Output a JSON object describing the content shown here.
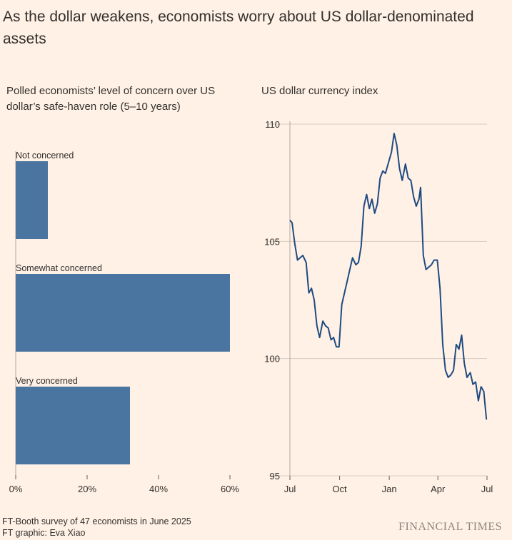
{
  "title": "As the dollar weakens, economists worry about US dollar-denominated assets",
  "footer": {
    "source": "FT-Booth survey of 47 economists in June 2025",
    "credit": "FT graphic: Eva Xiao",
    "logo": "FINANCIAL TIMES"
  },
  "colors": {
    "bar": "#4a75a0",
    "line": "#1f4b82",
    "grid": "#d7cbc2",
    "background": "#fff1e5"
  },
  "chart_data": [
    {
      "type": "bar",
      "orientation": "horizontal",
      "title": "Polled economists’ level of concern over US dollar’s safe-haven role (5–10 years)",
      "categories": [
        "Not concerned",
        "Somewhat concerned",
        "Very concerned"
      ],
      "values": [
        9,
        60,
        32
      ],
      "unit": "%",
      "xlim": [
        0,
        60
      ],
      "xticks": [
        "0%",
        "20%",
        "40%",
        "60%"
      ]
    },
    {
      "type": "line",
      "title": "US dollar currency index",
      "xlim": [
        "2024-07",
        "2025-07"
      ],
      "ylim": [
        95,
        110
      ],
      "xticks": [
        "Jul",
        "Oct",
        "Jan",
        "Apr",
        "Jul"
      ],
      "yticks": [
        "95",
        "100",
        "105",
        "110"
      ],
      "grid": true,
      "series": [
        {
          "x": [
            "2024-07-01",
            "2024-07-05",
            "2024-07-10",
            "2024-07-15",
            "2024-07-20",
            "2024-07-25",
            "2024-07-31",
            "2024-08-05",
            "2024-08-10",
            "2024-08-15",
            "2024-08-20",
            "2024-08-25",
            "2024-08-31",
            "2024-09-05",
            "2024-09-10",
            "2024-09-15",
            "2024-09-20",
            "2024-09-25",
            "2024-09-30",
            "2024-10-05",
            "2024-10-10",
            "2024-10-15",
            "2024-10-20",
            "2024-10-25",
            "2024-10-31",
            "2024-11-05",
            "2024-11-10",
            "2024-11-15",
            "2024-11-20",
            "2024-11-25",
            "2024-11-30",
            "2024-12-05",
            "2024-12-10",
            "2024-12-15",
            "2024-12-20",
            "2024-12-25",
            "2024-12-31",
            "2025-01-05",
            "2025-01-10",
            "2025-01-15",
            "2025-01-20",
            "2025-01-25",
            "2025-01-31",
            "2025-02-05",
            "2025-02-10",
            "2025-02-15",
            "2025-02-20",
            "2025-02-25",
            "2025-02-28",
            "2025-03-05",
            "2025-03-10",
            "2025-03-15",
            "2025-03-20",
            "2025-03-25",
            "2025-03-31",
            "2025-04-05",
            "2025-04-10",
            "2025-04-15",
            "2025-04-20",
            "2025-04-25",
            "2025-04-30",
            "2025-05-05",
            "2025-05-10",
            "2025-05-15",
            "2025-05-20",
            "2025-05-25",
            "2025-05-31",
            "2025-06-05",
            "2025-06-10",
            "2025-06-15",
            "2025-06-20",
            "2025-06-25",
            "2025-06-30"
          ],
          "values": [
            105.9,
            105.8,
            104.9,
            104.2,
            104.3,
            104.4,
            104.1,
            102.8,
            103.0,
            102.5,
            101.4,
            100.9,
            101.6,
            101.4,
            101.3,
            100.8,
            100.9,
            100.5,
            100.5,
            102.3,
            102.8,
            103.3,
            103.8,
            104.3,
            104.0,
            104.1,
            104.8,
            106.5,
            107.0,
            106.4,
            106.8,
            106.2,
            106.6,
            107.7,
            108.0,
            107.9,
            108.4,
            108.8,
            109.6,
            109.1,
            108.1,
            107.6,
            108.3,
            107.7,
            107.6,
            106.9,
            106.5,
            106.8,
            107.3,
            104.4,
            103.8,
            103.9,
            104.0,
            104.2,
            104.2,
            103.0,
            100.6,
            99.5,
            99.2,
            99.3,
            99.5,
            100.6,
            100.4,
            101.0,
            99.8,
            99.2,
            99.4,
            98.9,
            99.0,
            98.2,
            98.8,
            98.6,
            97.4
          ]
        }
      ]
    }
  ]
}
